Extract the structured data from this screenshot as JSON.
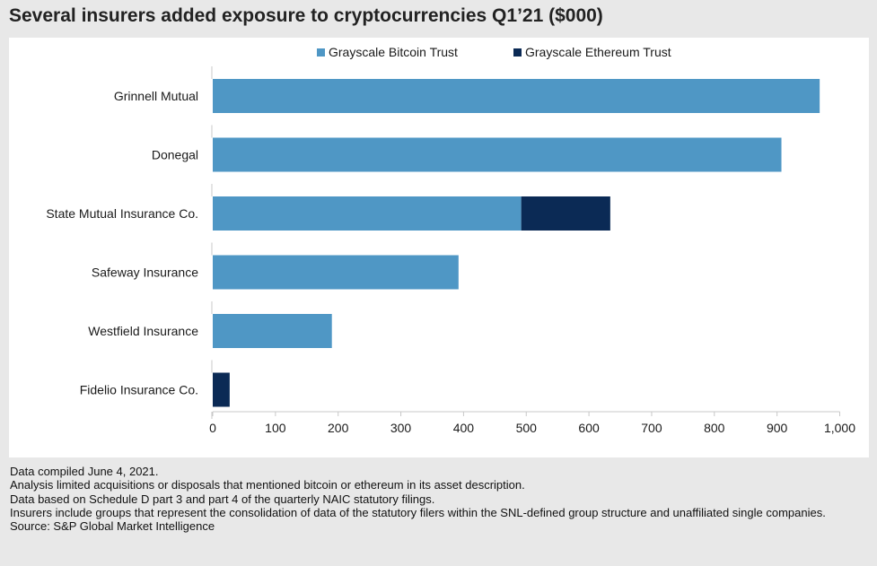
{
  "title": "Several insurers added exposure to cryptocurrencies Q1’21 ($000)",
  "chart_data": {
    "type": "bar",
    "orientation": "horizontal",
    "stacked": true,
    "categories": [
      "Grinnell Mutual",
      "Donegal",
      "State Mutual Insurance Co.",
      "Safeway Insurance",
      "Westfield Insurance",
      "Fidelio Insurance Co."
    ],
    "series": [
      {
        "name": "Grayscale Bitcoin Trust",
        "color": "#4f97c5",
        "values": [
          968,
          907,
          492,
          392,
          190,
          0
        ]
      },
      {
        "name": "Grayscale Ethereum Trust",
        "color": "#0b2a55",
        "values": [
          0,
          0,
          142,
          0,
          0,
          27
        ]
      }
    ],
    "xlim": [
      0,
      1000
    ],
    "xticks": [
      0,
      100,
      200,
      300,
      400,
      500,
      600,
      700,
      800,
      900,
      1000
    ],
    "xtick_labels": [
      "0",
      "100",
      "200",
      "300",
      "400",
      "500",
      "600",
      "700",
      "800",
      "900",
      "1,000"
    ],
    "xlabel": "",
    "ylabel": "",
    "grid": false,
    "legend_position": "top-center"
  },
  "notes": [
    "Data compiled June 4, 2021.",
    "Analysis limited acquisitions or disposals that mentioned bitcoin or ethereum in its asset description.",
    "Data based on Schedule D part 3 and part 4 of the quarterly NAIC statutory filings.",
    "Insurers include groups that represent the consolidation of data of the statutory filers within the SNL-defined group structure and unaffiliated single companies.",
    "Source: S&P Global Market Intelligence"
  ]
}
